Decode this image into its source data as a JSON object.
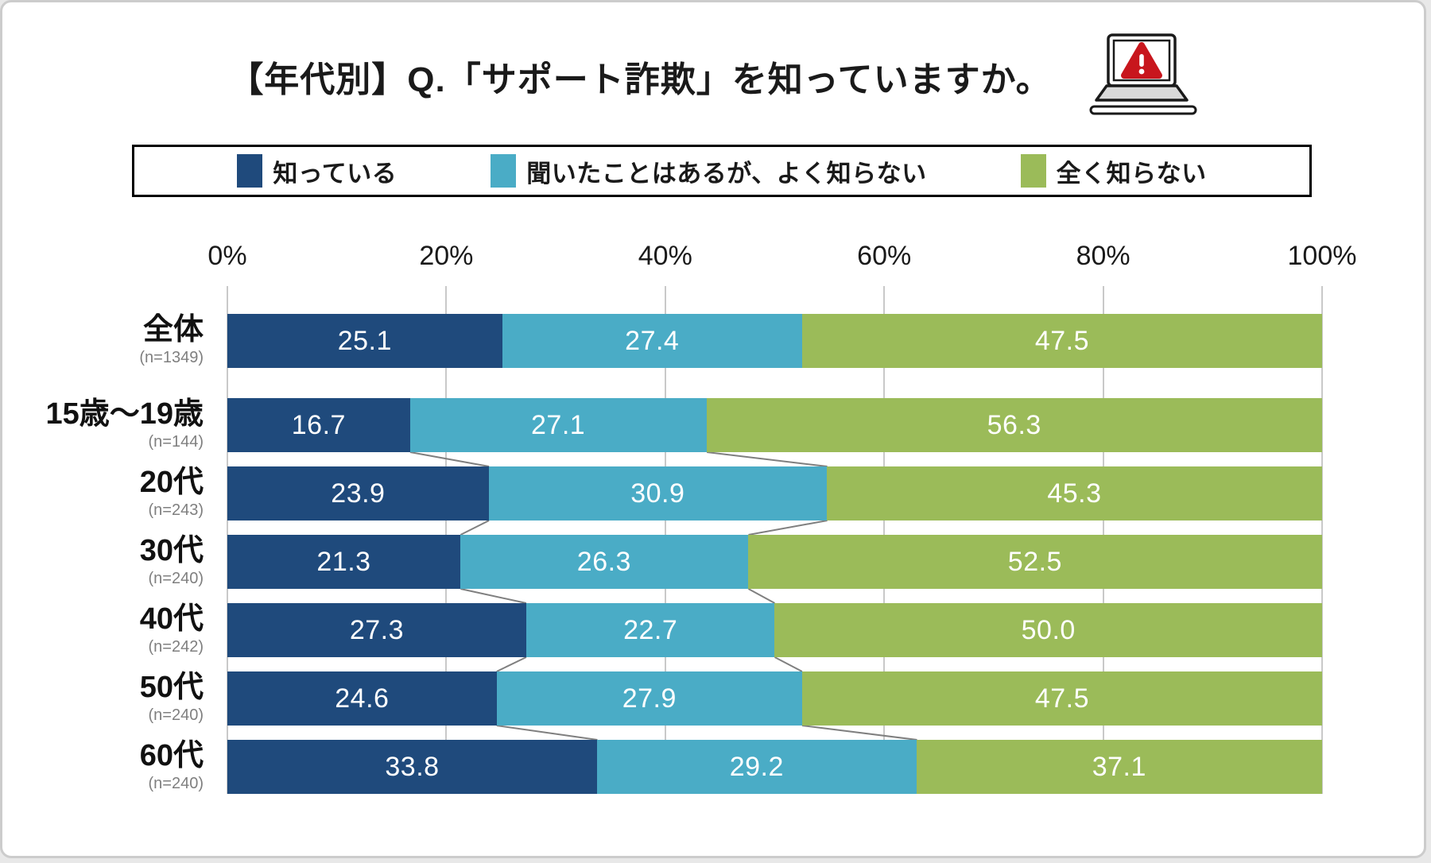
{
  "title": {
    "prefix": "【年代別】Q.「",
    "emphasis": "サポート詐欺",
    "suffix": "」を知っていますか。"
  },
  "header_icon": {
    "name": "laptop-warning-icon",
    "warning_color": "#c8161d",
    "outline_color": "#1a1a1a",
    "deck_color": "#d9d9d9"
  },
  "legend": {
    "items": [
      {
        "label": "知っている",
        "color": "#1f4a7c"
      },
      {
        "label": "聞いたことはあるが、よく知らない",
        "color": "#4aacc6"
      },
      {
        "label": "全く知らない",
        "color": "#9bbb59"
      }
    ]
  },
  "chart_data": {
    "type": "bar",
    "stacked": true,
    "orientation": "horizontal",
    "title": "【年代別】Q.「サポート詐欺」を知っていますか。",
    "x_ticks": [
      "0%",
      "20%",
      "40%",
      "60%",
      "80%",
      "100%"
    ],
    "xlim": [
      0,
      100
    ],
    "grid": true,
    "legend_position": "top",
    "series": [
      "知っている",
      "聞いたことはあるが、よく知らない",
      "全く知らない"
    ],
    "colors": [
      "#1f4a7c",
      "#4aacc6",
      "#9bbb59"
    ],
    "gridline_color": "#c9c9c9",
    "connector_color": "#7f7f7f",
    "value_decimals": 1,
    "rows": [
      {
        "label": "全体",
        "n": "(n=1349)",
        "values": [
          25.1,
          27.4,
          47.5
        ]
      },
      {
        "label": "15歳〜19歳",
        "n": "(n=144)",
        "values": [
          16.7,
          27.1,
          56.3
        ]
      },
      {
        "label": "20代",
        "n": "(n=243)",
        "values": [
          23.9,
          30.9,
          45.3
        ]
      },
      {
        "label": "30代",
        "n": "(n=240)",
        "values": [
          21.3,
          26.3,
          52.5
        ]
      },
      {
        "label": "40代",
        "n": "(n=242)",
        "values": [
          27.3,
          22.7,
          50.0
        ]
      },
      {
        "label": "50代",
        "n": "(n=240)",
        "values": [
          24.6,
          27.9,
          47.5
        ]
      },
      {
        "label": "60代",
        "n": "(n=240)",
        "values": [
          33.8,
          29.2,
          37.1
        ]
      }
    ],
    "connectors_skip_first_gap": true
  }
}
